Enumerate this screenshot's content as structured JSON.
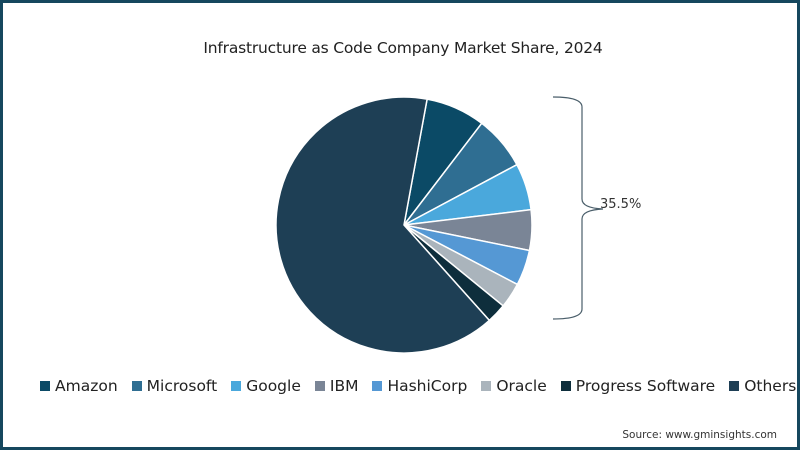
{
  "chart_data": {
    "type": "pie",
    "title": "Infrastructure as Code Company Market Share, 2024",
    "categories": [
      "Amazon",
      "Microsoft",
      "Google",
      "IBM",
      "HashiCorp",
      "Oracle",
      "Progress Software",
      "Others"
    ],
    "values": [
      7.5,
      6.8,
      5.9,
      5.1,
      4.5,
      3.2,
      2.5,
      64.5
    ],
    "unit": "%",
    "start_angle_deg": 10.4,
    "direction": "clockwise",
    "colors": [
      "#0b4a66",
      "#2f6e92",
      "#4aa8dc",
      "#7a8596",
      "#5598d4",
      "#aab4bc",
      "#0e2e3c",
      "#1e3f55"
    ],
    "annotations": [
      {
        "type": "bracket",
        "covers": [
          "Amazon",
          "Microsoft",
          "Google",
          "IBM",
          "HashiCorp",
          "Oracle",
          "Progress Software"
        ],
        "label": "35.5%"
      }
    ],
    "legend_position": "bottom",
    "source": "Source: www.gminsights.com"
  },
  "title": "Infrastructure as Code Company Market Share, 2024",
  "bracket_label": "35.5%",
  "legend": [
    {
      "label": "Amazon",
      "color": "#0b4a66"
    },
    {
      "label": "Microsoft",
      "color": "#2f6e92"
    },
    {
      "label": "Google",
      "color": "#4aa8dc"
    },
    {
      "label": "IBM",
      "color": "#7a8596"
    },
    {
      "label": "HashiCorp",
      "color": "#5598d4"
    },
    {
      "label": "Oracle",
      "color": "#aab4bc"
    },
    {
      "label": "Progress Software",
      "color": "#0e2e3c"
    },
    {
      "label": "Others",
      "color": "#1e3f55"
    }
  ],
  "source": "Source: www.gminsights.com"
}
